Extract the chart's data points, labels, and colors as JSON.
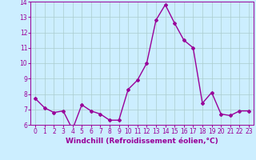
{
  "x": [
    0,
    1,
    2,
    3,
    4,
    5,
    6,
    7,
    8,
    9,
    10,
    11,
    12,
    13,
    14,
    15,
    16,
    17,
    18,
    19,
    20,
    21,
    22,
    23
  ],
  "y": [
    7.7,
    7.1,
    6.8,
    6.9,
    5.7,
    7.3,
    6.9,
    6.7,
    6.3,
    6.3,
    8.3,
    8.9,
    10.0,
    12.8,
    13.8,
    12.6,
    11.5,
    11.0,
    7.4,
    8.1,
    6.7,
    6.6,
    6.9,
    6.9
  ],
  "line_color": "#990099",
  "marker": "D",
  "marker_size": 2,
  "bg_color": "#cceeff",
  "grid_color": "#aacccc",
  "xlabel": "Windchill (Refroidissement éolien,°C)",
  "ylim": [
    6,
    14
  ],
  "yticks": [
    6,
    7,
    8,
    9,
    10,
    11,
    12,
    13,
    14
  ],
  "xlim_min": -0.5,
  "xlim_max": 23.5,
  "xticks": [
    0,
    1,
    2,
    3,
    4,
    5,
    6,
    7,
    8,
    9,
    10,
    11,
    12,
    13,
    14,
    15,
    16,
    17,
    18,
    19,
    20,
    21,
    22,
    23
  ],
  "tick_label_size": 5.5,
  "xlabel_size": 6.5,
  "linewidth": 1.0
}
